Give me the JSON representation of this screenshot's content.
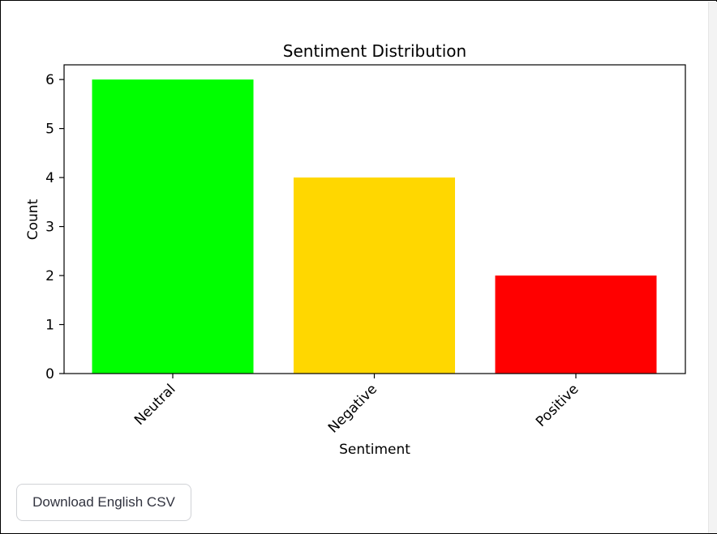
{
  "chart_data": {
    "type": "bar",
    "title": "Sentiment Distribution",
    "xlabel": "Sentiment",
    "ylabel": "Count",
    "categories": [
      "Neutral",
      "Negative",
      "Positive"
    ],
    "values": [
      6,
      4,
      2
    ],
    "bar_colors": [
      "#00ff00",
      "#ffd700",
      "#ff0000"
    ],
    "ylim": [
      0,
      6.3
    ],
    "yticks": [
      0,
      1,
      2,
      3,
      4,
      5,
      6
    ],
    "grid": false,
    "legend": "none"
  },
  "actions": {
    "download_label": "Download English CSV"
  }
}
